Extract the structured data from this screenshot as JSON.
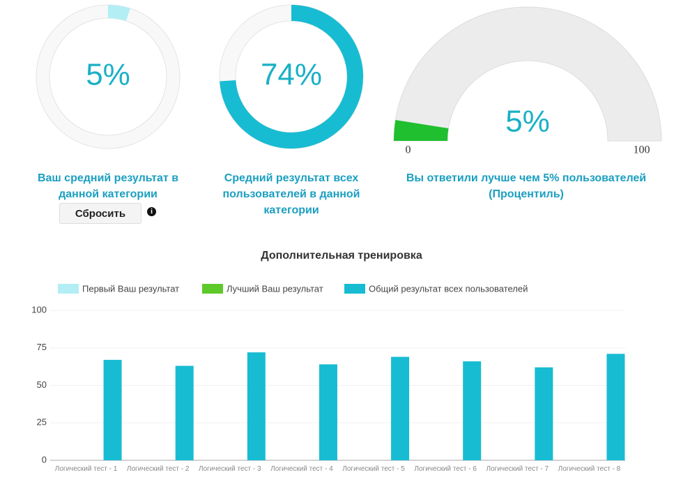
{
  "chart_data": [
    {
      "type": "donut",
      "title": "Ваш средний результат в данной категории",
      "values": [
        5
      ],
      "value_labels": [
        "5%"
      ],
      "color": "#b3eef5",
      "ylim": [
        0,
        100
      ]
    },
    {
      "type": "donut",
      "title": "Средний результат всех пользователей в данной категории",
      "values": [
        74
      ],
      "value_labels": [
        "74%"
      ],
      "color": "#17bcd2",
      "ylim": [
        0,
        100
      ]
    },
    {
      "type": "gauge",
      "title": "Вы ответили лучше чем 5% пользователей (Процентиль)",
      "values": [
        5
      ],
      "value_labels": [
        "5%"
      ],
      "color": "#1fbf2f",
      "ylim": [
        0,
        100
      ],
      "yticks": [
        0,
        100
      ]
    },
    {
      "type": "bar",
      "title": "Дополнительная тренировка",
      "categories": [
        "Логический тест - 1",
        "Логический тест - 2",
        "Логический тест - 3",
        "Логический тест - 4",
        "Логический тест - 5",
        "Логический тест - 6",
        "Логический тест - 7",
        "Логический тест - 8"
      ],
      "series": [
        {
          "name": "Первый Ваш результат",
          "color": "#b3eef5",
          "values": [
            null,
            null,
            null,
            null,
            null,
            null,
            null,
            null
          ]
        },
        {
          "name": "Лучший Ваш результат",
          "color": "#5ec92a",
          "values": [
            null,
            null,
            null,
            null,
            null,
            null,
            null,
            null
          ]
        },
        {
          "name": "Общий результат всех пользователей",
          "color": "#17bcd2",
          "values": [
            67,
            63,
            72,
            64,
            69,
            66,
            62,
            71
          ]
        }
      ],
      "ylim": [
        0,
        100
      ],
      "yticks": [
        0,
        25,
        50,
        75,
        100
      ],
      "grid": true
    }
  ],
  "controls": {
    "reset_button": "Сбросить"
  }
}
